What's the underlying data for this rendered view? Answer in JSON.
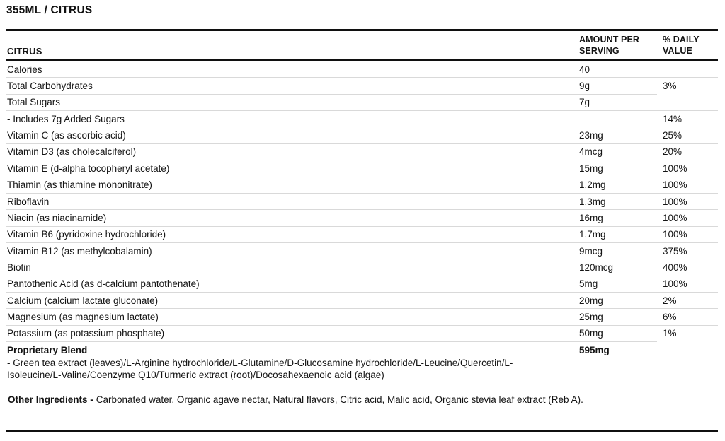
{
  "page_title": "355ML / CITRUS",
  "table": {
    "columns": {
      "name": "CITRUS",
      "amount": "AMOUNT PER SERVING",
      "daily_value": "% DAILY VALUE"
    },
    "rows": [
      {
        "name": "Calories",
        "amount": "40",
        "daily_value": "",
        "bold": false,
        "divider": "full"
      },
      {
        "name": "Total Carbohydrates",
        "amount": "9g",
        "daily_value": "3%",
        "bold": false,
        "divider": "mid"
      },
      {
        "name": "Total Sugars",
        "amount": "7g",
        "daily_value": "",
        "bold": false,
        "divider": "full"
      },
      {
        "name": "- Includes 7g Added Sugars",
        "amount": "",
        "daily_value": "14%",
        "bold": false,
        "divider": "full"
      },
      {
        "name": "Vitamin C (as ascorbic acid)",
        "amount": "23mg",
        "daily_value": "25%",
        "bold": false,
        "divider": "full"
      },
      {
        "name": "Vitamin D3 (as cholecalciferol)",
        "amount": "4mcg",
        "daily_value": "20%",
        "bold": false,
        "divider": "full"
      },
      {
        "name": "Vitamin E (d-alpha tocopheryl acetate)",
        "amount": "15mg",
        "daily_value": "100%",
        "bold": false,
        "divider": "full"
      },
      {
        "name": "Thiamin (as thiamine mononitrate)",
        "amount": "1.2mg",
        "daily_value": "100%",
        "bold": false,
        "divider": "full"
      },
      {
        "name": "Riboflavin",
        "amount": "1.3mg",
        "daily_value": "100%",
        "bold": false,
        "divider": "full"
      },
      {
        "name": "Niacin (as niacinamide)",
        "amount": "16mg",
        "daily_value": "100%",
        "bold": false,
        "divider": "full"
      },
      {
        "name": "Vitamin B6 (pyridoxine hydrochloride)",
        "amount": "1.7mg",
        "daily_value": "100%",
        "bold": false,
        "divider": "full"
      },
      {
        "name": "Vitamin B12 (as methylcobalamin)",
        "amount": "9mcg",
        "daily_value": "375%",
        "bold": false,
        "divider": "full"
      },
      {
        "name": "Biotin",
        "amount": "120mcg",
        "daily_value": "400%",
        "bold": false,
        "divider": "full"
      },
      {
        "name": "Pantothenic Acid (as d-calcium pantothenate)",
        "amount": "5mg",
        "daily_value": "100%",
        "bold": false,
        "divider": "full"
      },
      {
        "name": "Calcium (calcium lactate gluconate)",
        "amount": "20mg",
        "daily_value": "2%",
        "bold": false,
        "divider": "full"
      },
      {
        "name": "Magnesium (as magnesium lactate)",
        "amount": "25mg",
        "daily_value": "6%",
        "bold": false,
        "divider": "full"
      },
      {
        "name": "Potassium (as potassium phosphate)",
        "amount": "50mg",
        "daily_value": "1%",
        "bold": false,
        "divider": "mid"
      },
      {
        "name": "Proprietary Blend",
        "amount": "595mg",
        "daily_value": "",
        "bold": true,
        "divider": "short"
      }
    ]
  },
  "blend_note": "- Green tea extract (leaves)/L-Arginine hydrochloride/L-Glutamine/D-Glucosamine hydrochloride/L-Leucine/Quercetin/L-Isoleucine/L-Valine/Coenzyme Q10/Turmeric extract (root)/Docosahexaenoic acid (algae)",
  "other_ingredients": {
    "label": "Other Ingredients -",
    "text": "Carbonated water, Organic agave nectar, Natural flavors, Citric acid, Malic acid, Organic stevia leaf extract (Reb A)."
  },
  "colors": {
    "text": "#141414",
    "rule_heavy": "#101010",
    "rule_light": "#d9d9d9"
  }
}
